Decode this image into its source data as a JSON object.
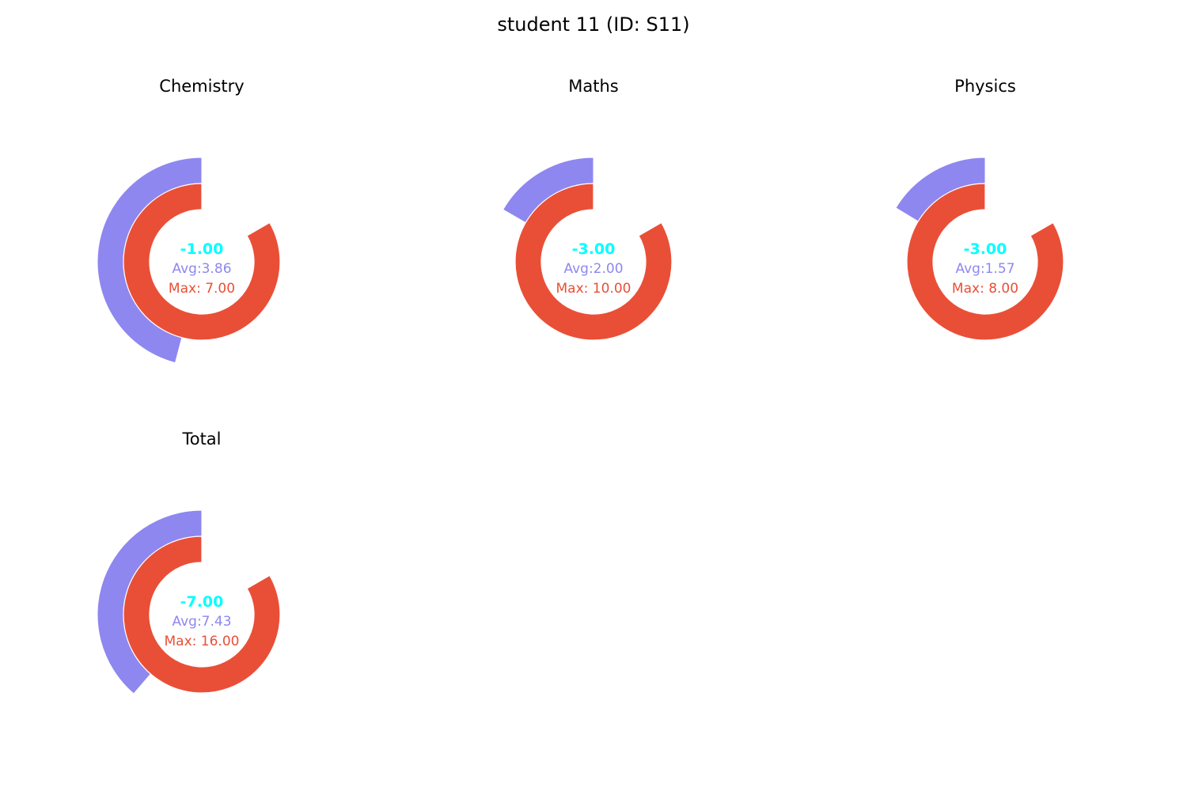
{
  "chart_data": {
    "type": "pie",
    "title": "student 11 (ID: S11)",
    "colors": {
      "avg": "#8e87f0",
      "max": "#e94f37",
      "score": "#00ffff",
      "ring_edge": "#ffffff"
    },
    "charts": [
      {
        "name": "Chemistry",
        "score": -1.0,
        "avg": 3.857,
        "max": 7.0,
        "score_label": "-1.00",
        "avg_label": "Avg:3.86",
        "max_label": "Max: 7.00"
      },
      {
        "name": "Maths",
        "score": -3.0,
        "avg": 2.0,
        "max": 10.0,
        "score_label": "-3.00",
        "avg_label": "Avg:2.00",
        "max_label": "Max: 10.00"
      },
      {
        "name": "Physics",
        "score": -3.0,
        "avg": 1.571,
        "max": 8.0,
        "score_label": "-3.00",
        "avg_label": "Avg:1.57",
        "max_label": "Max: 8.00"
      },
      {
        "name": "Total",
        "score": -7.0,
        "avg": 7.429,
        "max": 16.0,
        "score_label": "-7.00",
        "avg_label": "Avg:7.43",
        "max_label": "Max: 16.00"
      }
    ]
  }
}
